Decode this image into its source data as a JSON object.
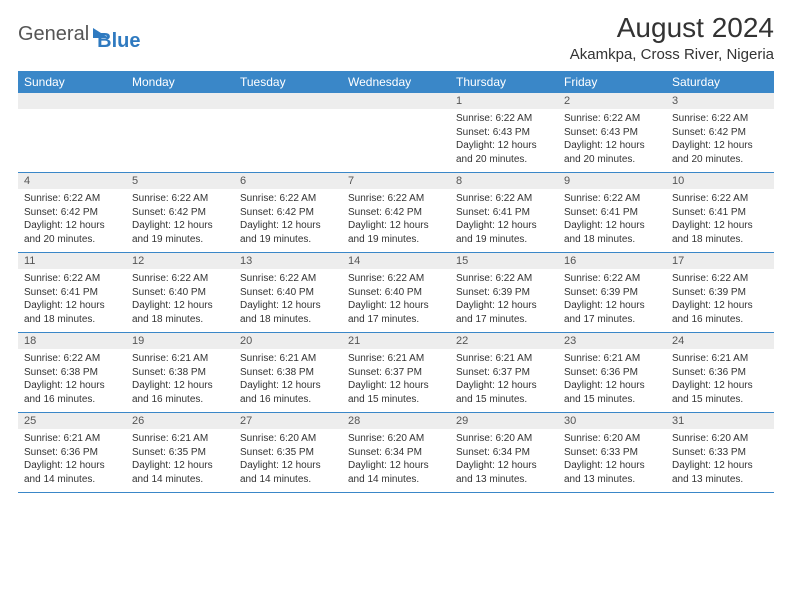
{
  "brand": {
    "part1": "General",
    "part2": "Blue"
  },
  "title": "August 2024",
  "location": "Akamkpa, Cross River, Nigeria",
  "colors": {
    "header_bg": "#3a87c8",
    "header_text": "#ffffff",
    "daynum_bg": "#ededed",
    "cell_border": "#3a87c8",
    "body_text": "#333333",
    "logo_blue": "#2f7ac0"
  },
  "day_headers": [
    "Sunday",
    "Monday",
    "Tuesday",
    "Wednesday",
    "Thursday",
    "Friday",
    "Saturday"
  ],
  "weeks": [
    [
      {
        "n": "",
        "sr": "",
        "ss": "",
        "dl": ""
      },
      {
        "n": "",
        "sr": "",
        "ss": "",
        "dl": ""
      },
      {
        "n": "",
        "sr": "",
        "ss": "",
        "dl": ""
      },
      {
        "n": "",
        "sr": "",
        "ss": "",
        "dl": ""
      },
      {
        "n": "1",
        "sr": "Sunrise: 6:22 AM",
        "ss": "Sunset: 6:43 PM",
        "dl": "Daylight: 12 hours and 20 minutes."
      },
      {
        "n": "2",
        "sr": "Sunrise: 6:22 AM",
        "ss": "Sunset: 6:43 PM",
        "dl": "Daylight: 12 hours and 20 minutes."
      },
      {
        "n": "3",
        "sr": "Sunrise: 6:22 AM",
        "ss": "Sunset: 6:42 PM",
        "dl": "Daylight: 12 hours and 20 minutes."
      }
    ],
    [
      {
        "n": "4",
        "sr": "Sunrise: 6:22 AM",
        "ss": "Sunset: 6:42 PM",
        "dl": "Daylight: 12 hours and 20 minutes."
      },
      {
        "n": "5",
        "sr": "Sunrise: 6:22 AM",
        "ss": "Sunset: 6:42 PM",
        "dl": "Daylight: 12 hours and 19 minutes."
      },
      {
        "n": "6",
        "sr": "Sunrise: 6:22 AM",
        "ss": "Sunset: 6:42 PM",
        "dl": "Daylight: 12 hours and 19 minutes."
      },
      {
        "n": "7",
        "sr": "Sunrise: 6:22 AM",
        "ss": "Sunset: 6:42 PM",
        "dl": "Daylight: 12 hours and 19 minutes."
      },
      {
        "n": "8",
        "sr": "Sunrise: 6:22 AM",
        "ss": "Sunset: 6:41 PM",
        "dl": "Daylight: 12 hours and 19 minutes."
      },
      {
        "n": "9",
        "sr": "Sunrise: 6:22 AM",
        "ss": "Sunset: 6:41 PM",
        "dl": "Daylight: 12 hours and 18 minutes."
      },
      {
        "n": "10",
        "sr": "Sunrise: 6:22 AM",
        "ss": "Sunset: 6:41 PM",
        "dl": "Daylight: 12 hours and 18 minutes."
      }
    ],
    [
      {
        "n": "11",
        "sr": "Sunrise: 6:22 AM",
        "ss": "Sunset: 6:41 PM",
        "dl": "Daylight: 12 hours and 18 minutes."
      },
      {
        "n": "12",
        "sr": "Sunrise: 6:22 AM",
        "ss": "Sunset: 6:40 PM",
        "dl": "Daylight: 12 hours and 18 minutes."
      },
      {
        "n": "13",
        "sr": "Sunrise: 6:22 AM",
        "ss": "Sunset: 6:40 PM",
        "dl": "Daylight: 12 hours and 18 minutes."
      },
      {
        "n": "14",
        "sr": "Sunrise: 6:22 AM",
        "ss": "Sunset: 6:40 PM",
        "dl": "Daylight: 12 hours and 17 minutes."
      },
      {
        "n": "15",
        "sr": "Sunrise: 6:22 AM",
        "ss": "Sunset: 6:39 PM",
        "dl": "Daylight: 12 hours and 17 minutes."
      },
      {
        "n": "16",
        "sr": "Sunrise: 6:22 AM",
        "ss": "Sunset: 6:39 PM",
        "dl": "Daylight: 12 hours and 17 minutes."
      },
      {
        "n": "17",
        "sr": "Sunrise: 6:22 AM",
        "ss": "Sunset: 6:39 PM",
        "dl": "Daylight: 12 hours and 16 minutes."
      }
    ],
    [
      {
        "n": "18",
        "sr": "Sunrise: 6:22 AM",
        "ss": "Sunset: 6:38 PM",
        "dl": "Daylight: 12 hours and 16 minutes."
      },
      {
        "n": "19",
        "sr": "Sunrise: 6:21 AM",
        "ss": "Sunset: 6:38 PM",
        "dl": "Daylight: 12 hours and 16 minutes."
      },
      {
        "n": "20",
        "sr": "Sunrise: 6:21 AM",
        "ss": "Sunset: 6:38 PM",
        "dl": "Daylight: 12 hours and 16 minutes."
      },
      {
        "n": "21",
        "sr": "Sunrise: 6:21 AM",
        "ss": "Sunset: 6:37 PM",
        "dl": "Daylight: 12 hours and 15 minutes."
      },
      {
        "n": "22",
        "sr": "Sunrise: 6:21 AM",
        "ss": "Sunset: 6:37 PM",
        "dl": "Daylight: 12 hours and 15 minutes."
      },
      {
        "n": "23",
        "sr": "Sunrise: 6:21 AM",
        "ss": "Sunset: 6:36 PM",
        "dl": "Daylight: 12 hours and 15 minutes."
      },
      {
        "n": "24",
        "sr": "Sunrise: 6:21 AM",
        "ss": "Sunset: 6:36 PM",
        "dl": "Daylight: 12 hours and 15 minutes."
      }
    ],
    [
      {
        "n": "25",
        "sr": "Sunrise: 6:21 AM",
        "ss": "Sunset: 6:36 PM",
        "dl": "Daylight: 12 hours and 14 minutes."
      },
      {
        "n": "26",
        "sr": "Sunrise: 6:21 AM",
        "ss": "Sunset: 6:35 PM",
        "dl": "Daylight: 12 hours and 14 minutes."
      },
      {
        "n": "27",
        "sr": "Sunrise: 6:20 AM",
        "ss": "Sunset: 6:35 PM",
        "dl": "Daylight: 12 hours and 14 minutes."
      },
      {
        "n": "28",
        "sr": "Sunrise: 6:20 AM",
        "ss": "Sunset: 6:34 PM",
        "dl": "Daylight: 12 hours and 14 minutes."
      },
      {
        "n": "29",
        "sr": "Sunrise: 6:20 AM",
        "ss": "Sunset: 6:34 PM",
        "dl": "Daylight: 12 hours and 13 minutes."
      },
      {
        "n": "30",
        "sr": "Sunrise: 6:20 AM",
        "ss": "Sunset: 6:33 PM",
        "dl": "Daylight: 12 hours and 13 minutes."
      },
      {
        "n": "31",
        "sr": "Sunrise: 6:20 AM",
        "ss": "Sunset: 6:33 PM",
        "dl": "Daylight: 12 hours and 13 minutes."
      }
    ]
  ]
}
